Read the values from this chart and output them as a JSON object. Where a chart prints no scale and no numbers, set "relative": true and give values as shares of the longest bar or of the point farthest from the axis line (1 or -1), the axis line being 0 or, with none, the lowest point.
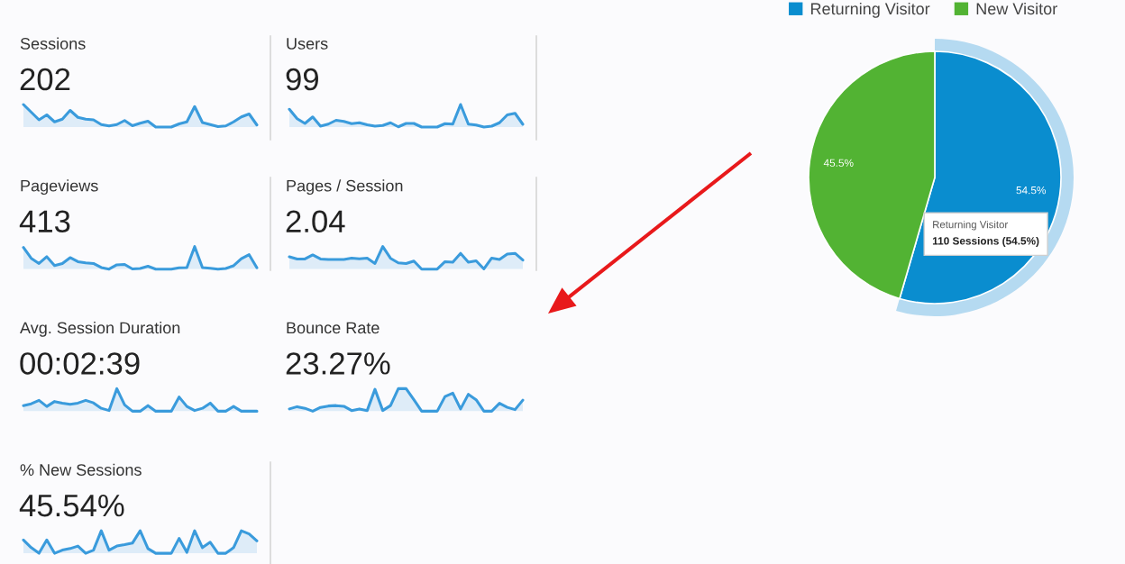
{
  "chart_data": [
    {
      "type": "area",
      "title": "Sessions",
      "subtitle": "202",
      "relative": true,
      "tick_labels": false,
      "color": "#3a9bdc",
      "categories": [
        null,
        null,
        null,
        null,
        null,
        null,
        null,
        null,
        null,
        null,
        null,
        null,
        null,
        null,
        null,
        null,
        null,
        null,
        null,
        null,
        null,
        null,
        null,
        null,
        null,
        null,
        null,
        null,
        null,
        null,
        null
      ],
      "values": [
        1.0,
        0.66,
        0.32,
        0.54,
        0.23,
        0.35,
        0.74,
        0.43,
        0.35,
        0.32,
        0.11,
        0.05,
        0.11,
        0.29,
        0.06,
        0.17,
        0.26,
        0,
        0,
        0,
        0.14,
        0.23,
        0.91,
        0.2,
        0.11,
        0.02,
        0.05,
        0.23,
        0.45,
        0.58,
        0.09
      ]
    },
    {
      "type": "area",
      "title": "Users",
      "subtitle": "99",
      "relative": true,
      "tick_labels": false,
      "color": "#3a9bdc",
      "categories": [
        null,
        null,
        null,
        null,
        null,
        null,
        null,
        null,
        null,
        null,
        null,
        null,
        null,
        null,
        null,
        null,
        null,
        null,
        null,
        null,
        null,
        null,
        null,
        null,
        null,
        null,
        null,
        null,
        null,
        null,
        null
      ],
      "values": [
        0.79,
        0.37,
        0.16,
        0.45,
        0.04,
        0.13,
        0.3,
        0.25,
        0.15,
        0.19,
        0.1,
        0.04,
        0.07,
        0.19,
        0.01,
        0.16,
        0.16,
        0,
        0,
        0,
        0.15,
        0.13,
        1,
        0.13,
        0.09,
        0,
        0.04,
        0.19,
        0.54,
        0.61,
        0.12
      ]
    },
    {
      "type": "area",
      "title": "Pageviews",
      "subtitle": "413",
      "relative": true,
      "tick_labels": false,
      "color": "#3a9bdc",
      "categories": [
        null,
        null,
        null,
        null,
        null,
        null,
        null,
        null,
        null,
        null,
        null,
        null,
        null,
        null,
        null,
        null,
        null,
        null,
        null,
        null,
        null,
        null,
        null,
        null,
        null,
        null,
        null,
        null,
        null,
        null,
        null
      ],
      "values": [
        0.96,
        0.48,
        0.25,
        0.55,
        0.16,
        0.25,
        0.51,
        0.33,
        0.28,
        0.25,
        0.07,
        0,
        0.19,
        0.21,
        0.01,
        0.03,
        0.13,
        0,
        0,
        0,
        0.06,
        0.07,
        1,
        0.07,
        0.04,
        0,
        0.03,
        0.15,
        0.46,
        0.64,
        0.06
      ]
    },
    {
      "type": "area",
      "title": "Pages / Session",
      "subtitle": "2.04",
      "relative": true,
      "tick_labels": false,
      "color": "#3a9bdc",
      "categories": [
        null,
        null,
        null,
        null,
        null,
        null,
        null,
        null,
        null,
        null,
        null,
        null,
        null,
        null,
        null,
        null,
        null,
        null,
        null,
        null,
        null,
        null,
        null,
        null,
        null,
        null,
        null,
        null,
        null,
        null,
        null
      ],
      "values": [
        0.55,
        0.45,
        0.45,
        0.63,
        0.45,
        0.43,
        0.43,
        0.43,
        0.49,
        0.46,
        0.49,
        0.25,
        1,
        0.48,
        0.28,
        0.25,
        0.36,
        0,
        0,
        0,
        0.33,
        0.31,
        0.7,
        0.31,
        0.37,
        0.01,
        0.49,
        0.43,
        0.67,
        0.7,
        0.4
      ]
    },
    {
      "type": "area",
      "title": "Avg. Session Duration",
      "subtitle": "00:02:39",
      "relative": true,
      "tick_labels": false,
      "color": "#3a9bdc",
      "categories": [
        null,
        null,
        null,
        null,
        null,
        null,
        null,
        null,
        null,
        null,
        null,
        null,
        null,
        null,
        null,
        null,
        null,
        null,
        null,
        null,
        null,
        null,
        null,
        null,
        null,
        null,
        null,
        null,
        null,
        null,
        null
      ],
      "values": [
        0.25,
        0.33,
        0.48,
        0.21,
        0.43,
        0.36,
        0.31,
        0.36,
        0.48,
        0.37,
        0.13,
        0.03,
        1,
        0.28,
        0,
        0,
        0.25,
        0,
        0,
        0,
        0.63,
        0.21,
        0.03,
        0.13,
        0.36,
        0,
        0,
        0.21,
        0,
        0,
        0
      ]
    },
    {
      "type": "area",
      "title": "Bounce Rate",
      "subtitle": "23.27%",
      "relative": true,
      "tick_labels": false,
      "color": "#3a9bdc",
      "categories": [
        null,
        null,
        null,
        null,
        null,
        null,
        null,
        null,
        null,
        null,
        null,
        null,
        null,
        null,
        null,
        null,
        null,
        null,
        null,
        null,
        null,
        null,
        null,
        null,
        null,
        null,
        null,
        null,
        null,
        null,
        null
      ],
      "values": [
        0.1,
        0.2,
        0.13,
        0,
        0.17,
        0.23,
        0.25,
        0.22,
        0.03,
        0.1,
        0.03,
        0.97,
        0.03,
        0.25,
        1,
        1,
        0.51,
        0,
        0,
        0,
        0.65,
        0.8,
        0.1,
        0.75,
        0.51,
        0,
        0,
        0.35,
        0.17,
        0.07,
        0.49
      ]
    },
    {
      "type": "area",
      "title": "% New Sessions",
      "subtitle": "45.54%",
      "relative": true,
      "tick_labels": false,
      "color": "#3a9bdc",
      "categories": [
        null,
        null,
        null,
        null,
        null,
        null,
        null,
        null,
        null,
        null,
        null,
        null,
        null,
        null,
        null,
        null,
        null,
        null,
        null,
        null,
        null,
        null,
        null,
        null,
        null,
        null,
        null,
        null,
        null,
        null,
        null
      ],
      "values": [
        0.59,
        0.25,
        0,
        0.59,
        0,
        0.14,
        0.21,
        0.32,
        0,
        0.14,
        1,
        0.14,
        0.32,
        0.38,
        0.45,
        1,
        0.21,
        0,
        0,
        0,
        0.66,
        0.04,
        1,
        0.25,
        0.49,
        0,
        0,
        0.25,
        1,
        0.86,
        0.55
      ]
    },
    {
      "type": "pie",
      "legend": "top",
      "categories": [
        "Returning Visitor",
        "New Visitor"
      ],
      "values": [
        54.5,
        45.5
      ],
      "colors": [
        "#0a8dcf",
        "#52b333"
      ],
      "value_labels": [
        "54.5%",
        "45.5%"
      ],
      "annotations": [
        "Returning Visitor",
        "110 Sessions (54.5%)"
      ]
    }
  ]
}
